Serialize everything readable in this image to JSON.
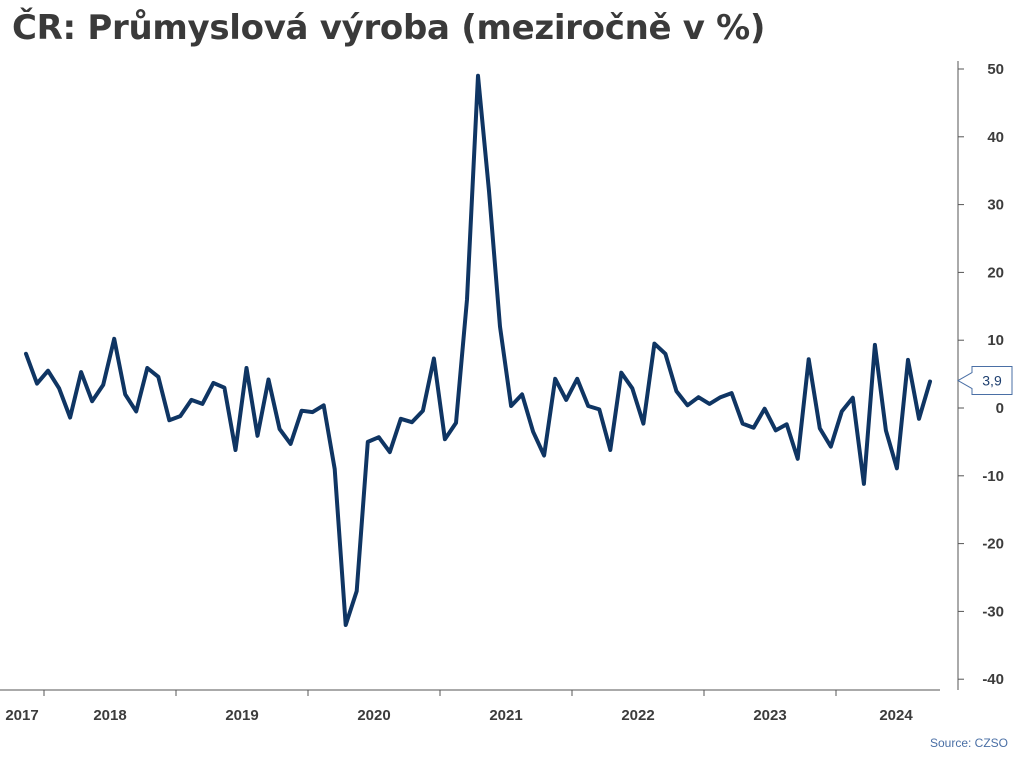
{
  "title": "ČR: Průmyslová výroba (meziročně v %)",
  "source": "Source: CZSO",
  "colors": {
    "line": "#0f3563",
    "axis": "#555555",
    "callout_border": "#4a6fa5"
  },
  "chart_data": {
    "type": "line",
    "title": "ČR: Průmyslová výroba (meziročně v %)",
    "xlabel": "",
    "ylabel": "",
    "ylim": [
      -40,
      50
    ],
    "yticks": [
      -40,
      -30,
      -20,
      -10,
      0,
      10,
      20,
      30,
      40,
      50
    ],
    "x_ticks": [
      "2017",
      "2018",
      "2019",
      "2020",
      "2021",
      "2022",
      "2023",
      "2024"
    ],
    "grid": false,
    "last_value_label": "3,9",
    "x_start": "2017-12",
    "x_end": "2024-08",
    "series": [
      {
        "values": [
          8.0,
          3.6,
          5.5,
          2.9,
          -1.4,
          5.3,
          1.0,
          3.4,
          10.2,
          2.0,
          -0.5,
          5.9,
          4.6,
          -1.8,
          -1.2,
          1.2,
          0.6,
          3.7,
          3.0,
          -6.2,
          5.9,
          -4.1,
          4.2,
          -3.1,
          -5.3,
          -0.4,
          -0.6,
          0.4,
          -9.0,
          -32.0,
          -27.0,
          -5.0,
          -4.3,
          -6.5,
          -1.6,
          -2.1,
          -0.4,
          7.3,
          -4.6,
          -2.2,
          16.0,
          49.0,
          32.0,
          12.0,
          0.3,
          2.0,
          -3.5,
          -7.0,
          4.3,
          1.2,
          4.3,
          0.3,
          -0.2,
          -6.2,
          5.2,
          2.9,
          -2.3,
          9.5,
          8.0,
          2.5,
          0.4,
          1.6,
          0.6,
          1.6,
          2.2,
          -2.3,
          -2.9,
          -0.1,
          -3.3,
          -2.4,
          -7.5,
          7.2,
          -3.0,
          -5.7,
          -0.5,
          1.5,
          -11.2,
          9.3,
          -3.3,
          -8.9,
          7.1,
          -1.6,
          3.9
        ]
      }
    ]
  }
}
